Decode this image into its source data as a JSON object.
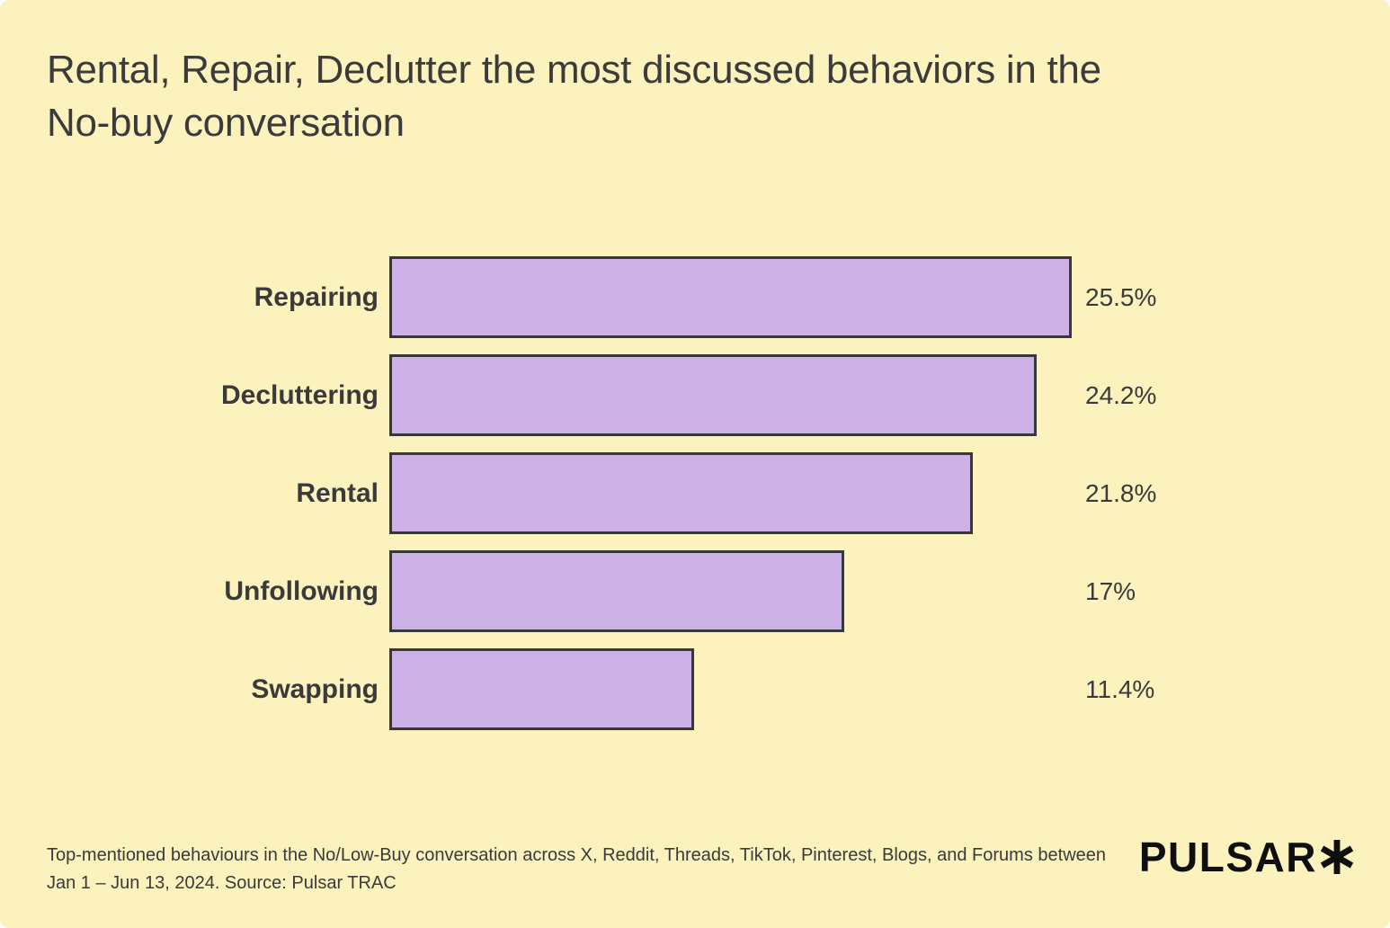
{
  "page": {
    "background_color": "#FBF2BD",
    "text_color": "#3B3B3B"
  },
  "title": {
    "line1": "Rental, Repair, Declutter the most discussed behaviors in the",
    "line2": "No-buy conversation"
  },
  "chart_data": {
    "type": "bar",
    "orientation": "horizontal",
    "title": "Rental, Repair, Declutter the most discussed behaviors in the No-buy conversation",
    "categories": [
      "Repairing",
      "Decluttering",
      "Rental",
      "Unfollowing",
      "Swapping"
    ],
    "values": [
      25.5,
      24.2,
      21.8,
      17,
      11.4
    ],
    "value_labels": [
      "25.5%",
      "24.2%",
      "21.8%",
      "17%",
      "11.4%"
    ],
    "unit": "%",
    "xlim": [
      0,
      25.5
    ],
    "grid": false,
    "legend": false,
    "bar_color": "#CBB1E5",
    "bar_border_color": "#38383A"
  },
  "footer": {
    "caption_line1": "Top-mentioned behaviours in the No/Low-Buy conversation across X, Reddit, Threads, TikTok, Pinterest, Blogs, and Forums between",
    "caption_line2": "Jan 1 – Jun 13, 2024. Source: Pulsar TRAC",
    "logo_text": "PULSAR",
    "logo_mark": "asterisk"
  }
}
